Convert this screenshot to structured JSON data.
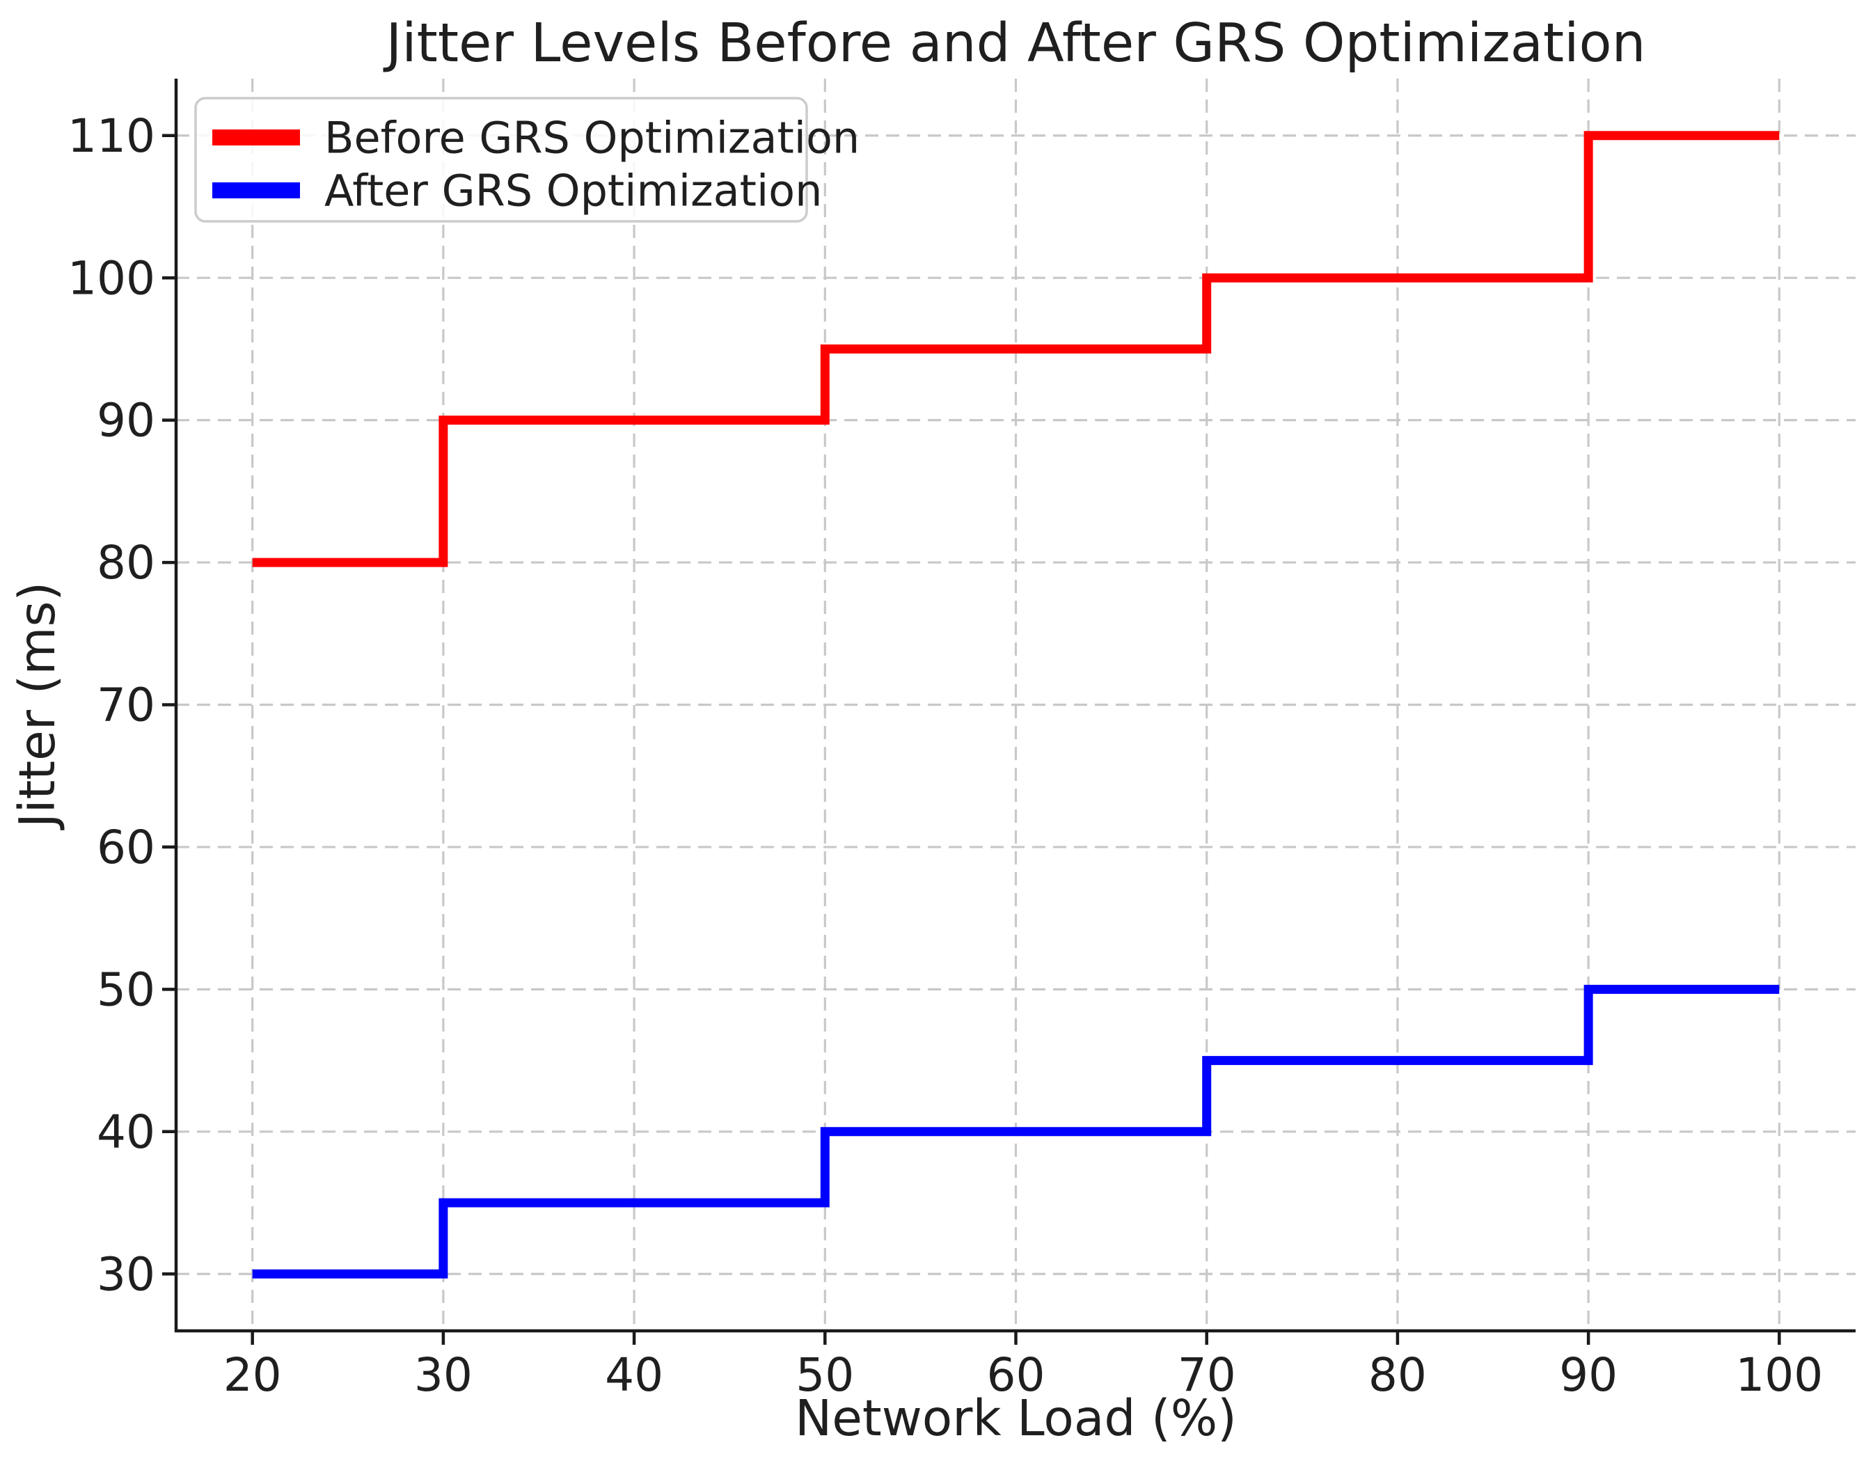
{
  "chart_data": {
    "type": "line",
    "step_style": "post",
    "title": "Jitter Levels Before and After GRS Optimization",
    "xlabel": "Network Load (%)",
    "ylabel": "Jitter (ms)",
    "x": [
      20,
      30,
      40,
      50,
      60,
      70,
      80,
      90,
      100
    ],
    "series": [
      {
        "name": "Before GRS Optimization",
        "color": "#ff0000",
        "values": [
          80,
          90,
          90,
          95,
          95,
          100,
          100,
          110,
          110
        ]
      },
      {
        "name": "After GRS Optimization",
        "color": "#0000ff",
        "values": [
          30,
          35,
          35,
          40,
          40,
          45,
          45,
          50,
          50
        ]
      }
    ],
    "xticks": [
      20,
      30,
      40,
      50,
      60,
      70,
      80,
      90,
      100
    ],
    "yticks": [
      30,
      40,
      50,
      60,
      70,
      80,
      90,
      100,
      110
    ],
    "xlim": [
      16,
      104
    ],
    "ylim": [
      26,
      114
    ],
    "grid": true,
    "grid_style": "dashed",
    "legend_position": "upper left"
  },
  "colors": {
    "series_before": "#ff0000",
    "series_after": "#0000ff",
    "grid": "#c8c8c8",
    "spine": "#1a1a1a",
    "text": "#1f1f1f",
    "legend_border": "#cccccc",
    "background": "#ffffff"
  }
}
